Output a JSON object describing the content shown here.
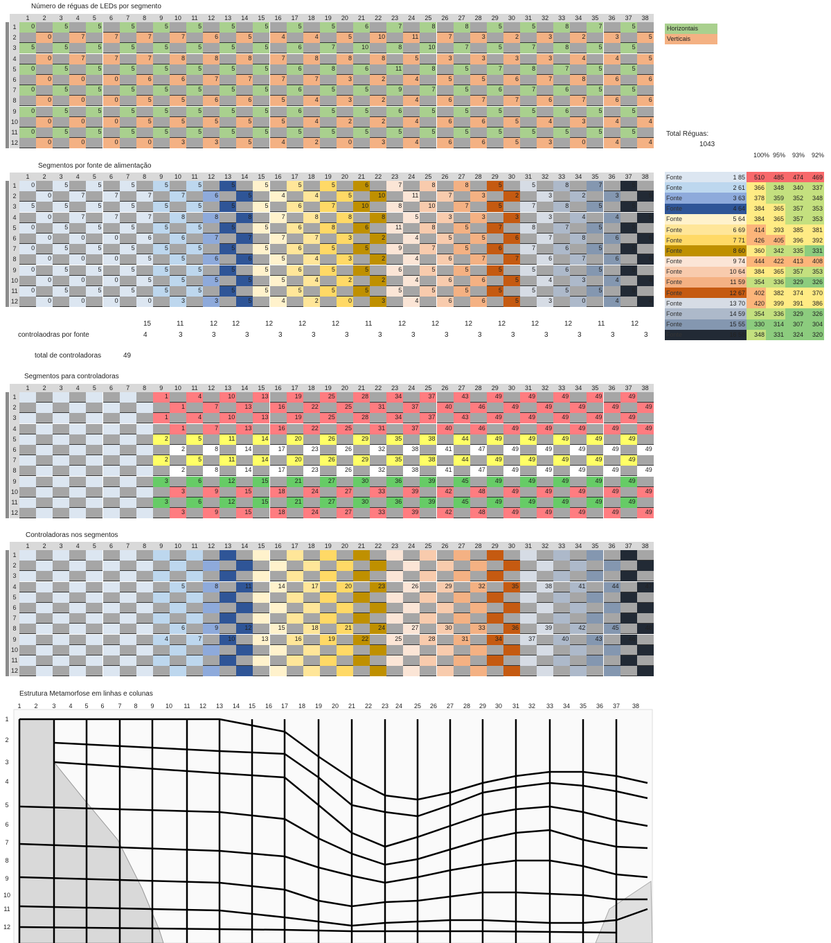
{
  "titles": {
    "s1": "Número de réguas de LEDs por segmento",
    "s2": "Segmentos por fonte de alimentação",
    "s3": "Segmentos para controladoras",
    "s4": "Controladoras nos segmentos",
    "s5": "Estrutura Metamorfose em linhas e colunas"
  },
  "columns": [
    "1",
    "2",
    "3",
    "4",
    "5",
    "6",
    "7",
    "8",
    "9",
    "10",
    "11",
    "12",
    "13",
    "14",
    "15",
    "16",
    "17",
    "18",
    "19",
    "20",
    "21",
    "22",
    "23",
    "24",
    "25",
    "26",
    "27",
    "28",
    "29",
    "30",
    "31",
    "32",
    "33",
    "34",
    "35",
    "36",
    "37",
    "38"
  ],
  "rows": [
    "1",
    "2",
    "3",
    "4",
    "5",
    "6",
    "7",
    "8",
    "9",
    "10",
    "11",
    "12"
  ],
  "legend": {
    "horizontais": "Horizontais",
    "verticais": "Verticais",
    "horizontais_color": "#a9d08e",
    "verticais_color": "#f4b183"
  },
  "total_reguas": {
    "label": "Total Réguas:",
    "value": "1043"
  },
  "percent_headers": [
    "100%",
    "95%",
    "93%",
    "92%"
  ],
  "fontes": [
    {
      "label": "Fonte",
      "n": "1",
      "seg": "85",
      "p": [
        "510",
        "485",
        "474",
        "469"
      ],
      "color": "#dce6f1"
    },
    {
      "label": "Fonte",
      "n": "2",
      "seg": "61",
      "p": [
        "366",
        "348",
        "340",
        "337"
      ],
      "color": "#bdd7ee"
    },
    {
      "label": "Fonte",
      "n": "3",
      "seg": "63",
      "p": [
        "378",
        "359",
        "352",
        "348"
      ],
      "color": "#8eaadb"
    },
    {
      "label": "Fonte",
      "n": "4",
      "seg": "64",
      "p": [
        "384",
        "365",
        "357",
        "353"
      ],
      "color": "#2f5597"
    },
    {
      "label": "Fonte",
      "n": "5",
      "seg": "64",
      "p": [
        "384",
        "365",
        "357",
        "353"
      ],
      "color": "#fff2cc"
    },
    {
      "label": "Fonte",
      "n": "6",
      "seg": "69",
      "p": [
        "414",
        "393",
        "385",
        "381"
      ],
      "color": "#ffe699"
    },
    {
      "label": "Fonte",
      "n": "7",
      "seg": "71",
      "p": [
        "426",
        "405",
        "396",
        "392"
      ],
      "color": "#ffd966"
    },
    {
      "label": "Fonte",
      "n": "8",
      "seg": "60",
      "p": [
        "360",
        "342",
        "335",
        "331"
      ],
      "color": "#bf9000"
    },
    {
      "label": "Fonte",
      "n": "9",
      "seg": "74",
      "p": [
        "444",
        "422",
        "413",
        "408"
      ],
      "color": "#fbe5d6"
    },
    {
      "label": "Fonte",
      "n": "10",
      "seg": "64",
      "p": [
        "384",
        "365",
        "357",
        "353"
      ],
      "color": "#f8cbad"
    },
    {
      "label": "Fonte",
      "n": "11",
      "seg": "59",
      "p": [
        "354",
        "336",
        "329",
        "326"
      ],
      "color": "#f4b183"
    },
    {
      "label": "Fonte",
      "n": "12",
      "seg": "67",
      "p": [
        "402",
        "382",
        "374",
        "370"
      ],
      "color": "#c55a11"
    },
    {
      "label": "Fonte",
      "n": "13",
      "seg": "70",
      "p": [
        "420",
        "399",
        "391",
        "386"
      ],
      "color": "#d6dce5"
    },
    {
      "label": "Fonte",
      "n": "14",
      "seg": "59",
      "p": [
        "354",
        "336",
        "329",
        "326"
      ],
      "color": "#adb9ca"
    },
    {
      "label": "Fonte",
      "n": "15",
      "seg": "55",
      "p": [
        "330",
        "314",
        "307",
        "304"
      ],
      "color": "#8497b0"
    },
    {
      "label": "Fonte",
      "n": "16",
      "seg": "58",
      "p": [
        "348",
        "331",
        "324",
        "320"
      ],
      "color": "#222a35"
    }
  ],
  "controladoras": {
    "label": "controlaodras por fonte",
    "top": [
      "15",
      "11",
      "12",
      "12",
      "12",
      "12",
      "12",
      "11",
      "12",
      "12",
      "12",
      "12",
      "12",
      "12",
      "11",
      "12"
    ],
    "bottom": [
      "4",
      "3",
      "3",
      "3",
      "3",
      "3",
      "3",
      "3",
      "3",
      "3",
      "3",
      "3",
      "3",
      "3",
      "3",
      "3"
    ],
    "total_label": "total de controladoras",
    "total_value": "49"
  },
  "s3_numbers": {
    "c1": [
      "1",
      "2",
      "3"
    ],
    "c2": [
      "4",
      "5",
      "6"
    ]
  },
  "s4_numbers": [
    "1",
    "2",
    "3",
    "4",
    "5",
    "6",
    "7",
    "8",
    "9",
    "10",
    "11",
    "12",
    "13",
    "14",
    "15",
    "16",
    "17",
    "18",
    "19",
    "20",
    "21",
    "22",
    "23",
    "24",
    "25",
    "26",
    "27",
    "28",
    "29",
    "30",
    "31",
    "32",
    "33",
    "34",
    "35",
    "36",
    "37",
    "38",
    "39",
    "40",
    "41",
    "42",
    "43",
    "44",
    "45",
    "46",
    "47",
    "48",
    "49"
  ],
  "struct_cols": [
    "1",
    "2",
    "3",
    "4",
    "5",
    "6",
    "7",
    "8",
    "9",
    "10",
    "11",
    "12",
    "13",
    "14",
    "15",
    "16",
    "17",
    "18",
    "19",
    "20",
    "21",
    "22",
    "23",
    "24",
    "25",
    "26",
    "27",
    "28",
    "29",
    "30",
    "31",
    "32",
    "33",
    "34",
    "35",
    "36",
    "37",
    "38"
  ],
  "struct_rows": [
    "1",
    "2",
    "3",
    "4",
    "5",
    "6",
    "7",
    "8",
    "9",
    "10",
    "11",
    "12"
  ],
  "s1_values": [
    [
      "0",
      "5",
      "5",
      "5",
      "5",
      "5",
      "5",
      "5",
      "5",
      "5",
      "6",
      "7",
      "8",
      "8",
      "5",
      "5",
      "8",
      "7",
      "5",
      "5",
      "5"
    ],
    [
      "0",
      "7",
      "7",
      "7",
      "7",
      "6",
      "5",
      "4",
      "4",
      "5",
      "10",
      "11",
      "7",
      "3",
      "2",
      "3",
      "2",
      "3",
      "5"
    ],
    [
      "5",
      "5",
      "5",
      "5",
      "5",
      "5",
      "5",
      "5",
      "6",
      "7",
      "10",
      "8",
      "10",
      "7",
      "5",
      "7",
      "8",
      "5",
      "5",
      "5"
    ],
    [
      "0",
      "7",
      "7",
      "7",
      "8",
      "8",
      "8",
      "7",
      "8",
      "8",
      "8",
      "5",
      "3",
      "3",
      "3",
      "3",
      "4",
      "4",
      "5"
    ],
    [
      "0",
      "5",
      "5",
      "5",
      "5",
      "5",
      "5",
      "5",
      "6",
      "8",
      "6",
      "11",
      "8",
      "5",
      "7",
      "8",
      "7",
      "5",
      "5"
    ],
    [
      "0",
      "0",
      "0",
      "6",
      "6",
      "7",
      "7",
      "7",
      "7",
      "3",
      "2",
      "4",
      "5",
      "5",
      "6",
      "7",
      "8",
      "6",
      "6"
    ]
  ],
  "s1_values_tail": [
    [
      "0",
      "5",
      "5",
      "5",
      "5",
      "5",
      "5",
      "5",
      "6",
      "5",
      "5",
      "9",
      "7",
      "5",
      "6",
      "7",
      "6",
      "5",
      "5"
    ],
    [
      "0",
      "0",
      "0",
      "5",
      "5",
      "6",
      "6",
      "5",
      "4",
      "3",
      "2",
      "4",
      "6",
      "7",
      "7",
      "6",
      "7",
      "6",
      "6"
    ],
    [
      "0",
      "5",
      "5",
      "5",
      "5",
      "5",
      "5",
      "5",
      "6",
      "5",
      "5",
      "6",
      "5",
      "5",
      "5",
      "5",
      "6",
      "5",
      "5"
    ],
    [
      "0",
      "0",
      "0",
      "5",
      "5",
      "5",
      "5",
      "5",
      "4",
      "2",
      "2",
      "4",
      "6",
      "6",
      "5",
      "4",
      "3",
      "4",
      "4"
    ],
    [
      "0",
      "5",
      "5",
      "5",
      "5",
      "5",
      "5",
      "5",
      "5",
      "5",
      "5",
      "5",
      "5",
      "5",
      "5",
      "5",
      "5",
      "5",
      "5"
    ],
    [
      "0",
      "0",
      "0",
      "0",
      "3",
      "3",
      "5",
      "4",
      "2",
      "0",
      "3",
      "4",
      "6",
      "6",
      "5",
      "3",
      "0",
      "4",
      "4"
    ]
  ]
}
